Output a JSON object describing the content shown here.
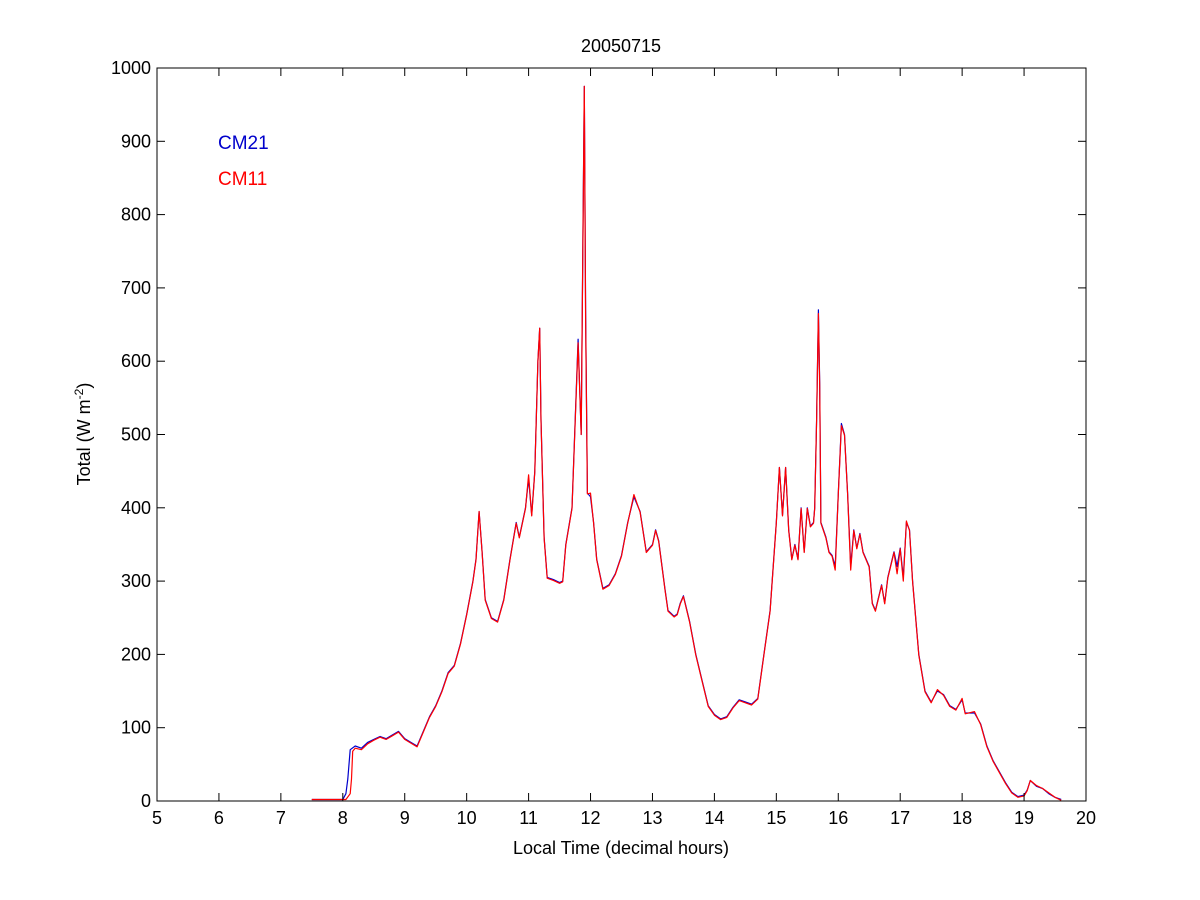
{
  "chart_data": {
    "type": "line",
    "title": "20050715",
    "xlabel": "Local Time (decimal hours)",
    "ylabel": {
      "text": "Total (W m",
      "sup": "-2",
      "close": ")"
    },
    "xlim": [
      5,
      20
    ],
    "ylim": [
      0,
      1000
    ],
    "xticks": [
      5,
      6,
      7,
      8,
      9,
      10,
      11,
      12,
      13,
      14,
      15,
      16,
      17,
      18,
      19,
      20
    ],
    "yticks": [
      0,
      100,
      200,
      300,
      400,
      500,
      600,
      700,
      800,
      900,
      1000
    ],
    "grid": false,
    "legend_position": "top-left",
    "series": [
      {
        "name": "CM21",
        "color": "#0000cc",
        "points": [
          [
            7.5,
            2
          ],
          [
            8.0,
            2
          ],
          [
            8.05,
            10
          ],
          [
            8.08,
            30
          ],
          [
            8.12,
            70
          ],
          [
            8.2,
            75
          ],
          [
            8.3,
            72
          ],
          [
            8.4,
            80
          ],
          [
            8.5,
            84
          ],
          [
            8.6,
            88
          ],
          [
            8.7,
            85
          ],
          [
            8.8,
            90
          ],
          [
            8.9,
            95
          ],
          [
            9.0,
            85
          ],
          [
            9.1,
            80
          ],
          [
            9.2,
            75
          ],
          [
            9.3,
            95
          ],
          [
            9.4,
            115
          ],
          [
            9.5,
            130
          ],
          [
            9.6,
            150
          ],
          [
            9.7,
            175
          ],
          [
            9.8,
            185
          ],
          [
            9.9,
            215
          ],
          [
            10.0,
            255
          ],
          [
            10.1,
            300
          ],
          [
            10.15,
            330
          ],
          [
            10.2,
            395
          ],
          [
            10.25,
            340
          ],
          [
            10.3,
            275
          ],
          [
            10.4,
            250
          ],
          [
            10.5,
            245
          ],
          [
            10.6,
            275
          ],
          [
            10.7,
            330
          ],
          [
            10.8,
            380
          ],
          [
            10.85,
            360
          ],
          [
            10.95,
            400
          ],
          [
            11.0,
            440
          ],
          [
            11.05,
            390
          ],
          [
            11.1,
            450
          ],
          [
            11.15,
            600
          ],
          [
            11.18,
            645
          ],
          [
            11.2,
            520
          ],
          [
            11.25,
            360
          ],
          [
            11.3,
            305
          ],
          [
            11.4,
            302
          ],
          [
            11.5,
            298
          ],
          [
            11.55,
            300
          ],
          [
            11.6,
            350
          ],
          [
            11.7,
            400
          ],
          [
            11.8,
            630
          ],
          [
            11.85,
            500
          ],
          [
            11.88,
            800
          ],
          [
            11.9,
            975
          ],
          [
            11.92,
            670
          ],
          [
            11.95,
            420
          ],
          [
            12.0,
            415
          ],
          [
            12.05,
            380
          ],
          [
            12.1,
            330
          ],
          [
            12.2,
            290
          ],
          [
            12.3,
            295
          ],
          [
            12.4,
            310
          ],
          [
            12.5,
            335
          ],
          [
            12.6,
            380
          ],
          [
            12.7,
            415
          ],
          [
            12.8,
            395
          ],
          [
            12.9,
            340
          ],
          [
            13.0,
            350
          ],
          [
            13.05,
            370
          ],
          [
            13.1,
            355
          ],
          [
            13.2,
            290
          ],
          [
            13.25,
            260
          ],
          [
            13.35,
            252
          ],
          [
            13.4,
            255
          ],
          [
            13.45,
            270
          ],
          [
            13.5,
            280
          ],
          [
            13.6,
            245
          ],
          [
            13.7,
            200
          ],
          [
            13.8,
            165
          ],
          [
            13.9,
            130
          ],
          [
            14.0,
            118
          ],
          [
            14.1,
            112
          ],
          [
            14.2,
            115
          ],
          [
            14.3,
            128
          ],
          [
            14.4,
            138
          ],
          [
            14.5,
            135
          ],
          [
            14.6,
            132
          ],
          [
            14.7,
            140
          ],
          [
            14.8,
            200
          ],
          [
            14.9,
            260
          ],
          [
            14.95,
            320
          ],
          [
            15.0,
            380
          ],
          [
            15.05,
            455
          ],
          [
            15.1,
            390
          ],
          [
            15.15,
            455
          ],
          [
            15.2,
            370
          ],
          [
            15.25,
            330
          ],
          [
            15.3,
            350
          ],
          [
            15.35,
            330
          ],
          [
            15.4,
            400
          ],
          [
            15.45,
            340
          ],
          [
            15.5,
            400
          ],
          [
            15.55,
            375
          ],
          [
            15.6,
            380
          ],
          [
            15.62,
            400
          ],
          [
            15.65,
            520
          ],
          [
            15.68,
            670
          ],
          [
            15.7,
            570
          ],
          [
            15.72,
            380
          ],
          [
            15.8,
            360
          ],
          [
            15.85,
            340
          ],
          [
            15.9,
            335
          ],
          [
            15.95,
            320
          ],
          [
            16.0,
            420
          ],
          [
            16.05,
            515
          ],
          [
            16.1,
            500
          ],
          [
            16.15,
            420
          ],
          [
            16.2,
            320
          ],
          [
            16.25,
            370
          ],
          [
            16.3,
            345
          ],
          [
            16.35,
            365
          ],
          [
            16.4,
            340
          ],
          [
            16.5,
            320
          ],
          [
            16.55,
            270
          ],
          [
            16.6,
            260
          ],
          [
            16.7,
            295
          ],
          [
            16.75,
            270
          ],
          [
            16.8,
            305
          ],
          [
            16.9,
            340
          ],
          [
            16.95,
            320
          ],
          [
            17.0,
            345
          ],
          [
            17.05,
            305
          ],
          [
            17.1,
            380
          ],
          [
            17.15,
            370
          ],
          [
            17.2,
            300
          ],
          [
            17.3,
            200
          ],
          [
            17.4,
            150
          ],
          [
            17.5,
            135
          ],
          [
            17.6,
            150
          ],
          [
            17.7,
            145
          ],
          [
            17.8,
            130
          ],
          [
            17.9,
            125
          ],
          [
            18.0,
            138
          ],
          [
            18.05,
            120
          ],
          [
            18.2,
            120
          ],
          [
            18.3,
            105
          ],
          [
            18.4,
            75
          ],
          [
            18.5,
            55
          ],
          [
            18.6,
            40
          ],
          [
            18.7,
            25
          ],
          [
            18.8,
            12
          ],
          [
            18.9,
            6
          ],
          [
            19.0,
            8
          ],
          [
            19.05,
            15
          ],
          [
            19.1,
            28
          ],
          [
            19.2,
            20
          ],
          [
            19.3,
            17
          ],
          [
            19.4,
            10
          ],
          [
            19.5,
            5
          ],
          [
            19.6,
            2
          ]
        ]
      },
      {
        "name": "CM11",
        "color": "#ff0000",
        "points": [
          [
            7.5,
            2
          ],
          [
            8.05,
            2
          ],
          [
            8.12,
            10
          ],
          [
            8.14,
            30
          ],
          [
            8.16,
            68
          ],
          [
            8.2,
            72
          ],
          [
            8.3,
            70
          ],
          [
            8.4,
            78
          ],
          [
            8.5,
            83
          ],
          [
            8.6,
            87
          ],
          [
            8.7,
            84
          ],
          [
            8.8,
            89
          ],
          [
            8.9,
            94
          ],
          [
            9.0,
            84
          ],
          [
            9.1,
            79
          ],
          [
            9.2,
            74
          ],
          [
            9.3,
            94
          ],
          [
            9.4,
            114
          ],
          [
            9.5,
            129
          ],
          [
            9.6,
            149
          ],
          [
            9.7,
            174
          ],
          [
            9.8,
            184
          ],
          [
            9.9,
            214
          ],
          [
            10.0,
            254
          ],
          [
            10.1,
            299
          ],
          [
            10.15,
            329
          ],
          [
            10.2,
            395
          ],
          [
            10.25,
            339
          ],
          [
            10.3,
            274
          ],
          [
            10.4,
            249
          ],
          [
            10.5,
            244
          ],
          [
            10.6,
            274
          ],
          [
            10.7,
            329
          ],
          [
            10.8,
            379
          ],
          [
            10.85,
            359
          ],
          [
            10.95,
            399
          ],
          [
            11.0,
            445
          ],
          [
            11.05,
            389
          ],
          [
            11.1,
            449
          ],
          [
            11.15,
            600
          ],
          [
            11.18,
            645
          ],
          [
            11.2,
            519
          ],
          [
            11.25,
            359
          ],
          [
            11.3,
            304
          ],
          [
            11.4,
            301
          ],
          [
            11.5,
            297
          ],
          [
            11.55,
            299
          ],
          [
            11.6,
            349
          ],
          [
            11.7,
            399
          ],
          [
            11.8,
            625
          ],
          [
            11.85,
            500
          ],
          [
            11.88,
            790
          ],
          [
            11.9,
            975
          ],
          [
            11.92,
            660
          ],
          [
            11.95,
            419
          ],
          [
            12.0,
            420
          ],
          [
            12.05,
            379
          ],
          [
            12.1,
            329
          ],
          [
            12.2,
            289
          ],
          [
            12.3,
            294
          ],
          [
            12.4,
            309
          ],
          [
            12.5,
            334
          ],
          [
            12.6,
            379
          ],
          [
            12.7,
            418
          ],
          [
            12.8,
            394
          ],
          [
            12.9,
            339
          ],
          [
            13.0,
            349
          ],
          [
            13.05,
            369
          ],
          [
            13.1,
            354
          ],
          [
            13.2,
            289
          ],
          [
            13.25,
            259
          ],
          [
            13.35,
            251
          ],
          [
            13.4,
            254
          ],
          [
            13.45,
            269
          ],
          [
            13.5,
            279
          ],
          [
            13.6,
            244
          ],
          [
            13.7,
            199
          ],
          [
            13.8,
            164
          ],
          [
            13.9,
            129
          ],
          [
            14.0,
            117
          ],
          [
            14.1,
            111
          ],
          [
            14.2,
            114
          ],
          [
            14.3,
            127
          ],
          [
            14.4,
            137
          ],
          [
            14.5,
            134
          ],
          [
            14.6,
            131
          ],
          [
            14.7,
            139
          ],
          [
            14.8,
            199
          ],
          [
            14.9,
            259
          ],
          [
            14.95,
            319
          ],
          [
            15.0,
            379
          ],
          [
            15.05,
            455
          ],
          [
            15.1,
            389
          ],
          [
            15.15,
            455
          ],
          [
            15.2,
            369
          ],
          [
            15.25,
            329
          ],
          [
            15.3,
            349
          ],
          [
            15.35,
            329
          ],
          [
            15.4,
            399
          ],
          [
            15.45,
            339
          ],
          [
            15.5,
            399
          ],
          [
            15.55,
            374
          ],
          [
            15.6,
            379
          ],
          [
            15.62,
            399
          ],
          [
            15.65,
            519
          ],
          [
            15.68,
            665
          ],
          [
            15.7,
            565
          ],
          [
            15.72,
            379
          ],
          [
            15.8,
            359
          ],
          [
            15.85,
            339
          ],
          [
            15.9,
            334
          ],
          [
            15.95,
            315
          ],
          [
            16.0,
            419
          ],
          [
            16.05,
            512
          ],
          [
            16.1,
            499
          ],
          [
            16.15,
            419
          ],
          [
            16.2,
            315
          ],
          [
            16.25,
            369
          ],
          [
            16.3,
            344
          ],
          [
            16.35,
            364
          ],
          [
            16.4,
            339
          ],
          [
            16.5,
            319
          ],
          [
            16.55,
            269
          ],
          [
            16.6,
            259
          ],
          [
            16.7,
            294
          ],
          [
            16.75,
            269
          ],
          [
            16.8,
            304
          ],
          [
            16.9,
            339
          ],
          [
            16.95,
            310
          ],
          [
            17.0,
            344
          ],
          [
            17.05,
            300
          ],
          [
            17.1,
            382
          ],
          [
            17.15,
            369
          ],
          [
            17.2,
            299
          ],
          [
            17.3,
            199
          ],
          [
            17.4,
            149
          ],
          [
            17.5,
            134
          ],
          [
            17.6,
            152
          ],
          [
            17.7,
            144
          ],
          [
            17.8,
            129
          ],
          [
            17.9,
            124
          ],
          [
            18.0,
            140
          ],
          [
            18.05,
            119
          ],
          [
            18.2,
            122
          ],
          [
            18.3,
            104
          ],
          [
            18.4,
            74
          ],
          [
            18.5,
            54
          ],
          [
            18.6,
            39
          ],
          [
            18.7,
            24
          ],
          [
            18.8,
            11
          ],
          [
            18.9,
            5
          ],
          [
            19.0,
            7
          ],
          [
            19.05,
            14
          ],
          [
            19.1,
            28
          ],
          [
            19.2,
            21
          ],
          [
            19.3,
            17
          ],
          [
            19.4,
            11
          ],
          [
            19.5,
            5
          ],
          [
            19.6,
            1
          ]
        ]
      }
    ]
  }
}
